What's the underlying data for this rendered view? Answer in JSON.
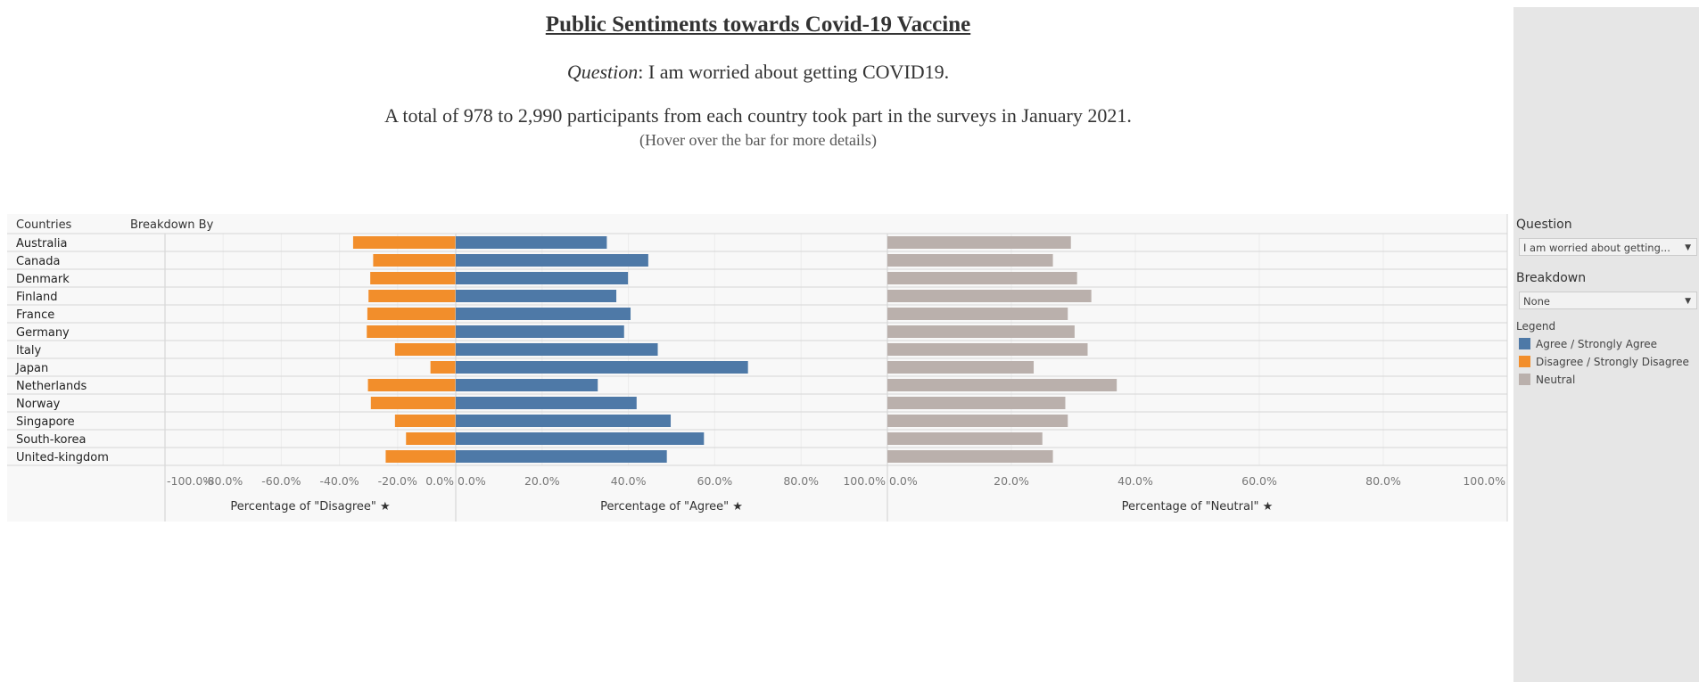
{
  "header": {
    "title": "Public Sentiments towards Covid-19 Vaccine",
    "question_label": "Question",
    "question_text": ": I am worried about getting COVID19.",
    "total": "A total of 978 to 2,990 participants from each country took part in the surveys in January 2021.",
    "hover": "(Hover over the bar for more details)"
  },
  "sidebar": {
    "question_label": "Question",
    "question_value": "I am worried about getting...",
    "breakdown_label": "Breakdown",
    "breakdown_value": "None",
    "legend_label": "Legend",
    "legend": [
      {
        "label": "Agree / Strongly Agree",
        "color": "#4e79a7"
      },
      {
        "label": "Disagree / Strongly Disagree",
        "color": "#f28e2b"
      },
      {
        "label": "Neutral",
        "color": "#bab0ac"
      }
    ]
  },
  "chart_data": {
    "type": "bar",
    "columns_header": "Countries",
    "breakdown_header": "Breakdown By",
    "categories": [
      "Australia",
      "Canada",
      "Denmark",
      "Finland",
      "France",
      "Germany",
      "Italy",
      "Japan",
      "Netherlands",
      "Norway",
      "Singapore",
      "South-korea",
      "United-kingdom"
    ],
    "series": [
      {
        "name": "Disagree",
        "axis_title": "Percentage of \"Disagree\"",
        "color": "#f28e2b",
        "values": [
          -35.3,
          -28.4,
          -29.4,
          -30.0,
          -30.4,
          -30.6,
          -20.9,
          -8.7,
          -30.2,
          -29.2,
          -20.9,
          -17.1,
          -24.1
        ],
        "xlim": [
          -100,
          0
        ],
        "ticks": [
          "-100.0%",
          "-80.0%",
          "-60.0%",
          "-40.0%",
          "-20.0%",
          "0.0%"
        ]
      },
      {
        "name": "Agree",
        "axis_title": "Percentage of \"Agree\"",
        "color": "#4e79a7",
        "values": [
          35.0,
          44.6,
          39.9,
          37.2,
          40.5,
          39.0,
          46.8,
          67.7,
          32.9,
          41.9,
          49.8,
          57.5,
          48.9
        ],
        "xlim": [
          0,
          100
        ],
        "ticks": [
          "0.0%",
          "20.0%",
          "40.0%",
          "60.0%",
          "80.0%",
          "100.0%"
        ]
      },
      {
        "name": "Neutral",
        "axis_title": "Percentage of \"Neutral\"",
        "color": "#bab0ac",
        "values": [
          29.6,
          26.7,
          30.6,
          32.9,
          29.1,
          30.2,
          32.3,
          23.6,
          37.0,
          28.7,
          29.1,
          25.0,
          26.7
        ],
        "xlim": [
          0,
          100
        ],
        "ticks": [
          "0.0%",
          "20.0%",
          "40.0%",
          "60.0%",
          "80.0%",
          "100.0%"
        ]
      }
    ]
  }
}
